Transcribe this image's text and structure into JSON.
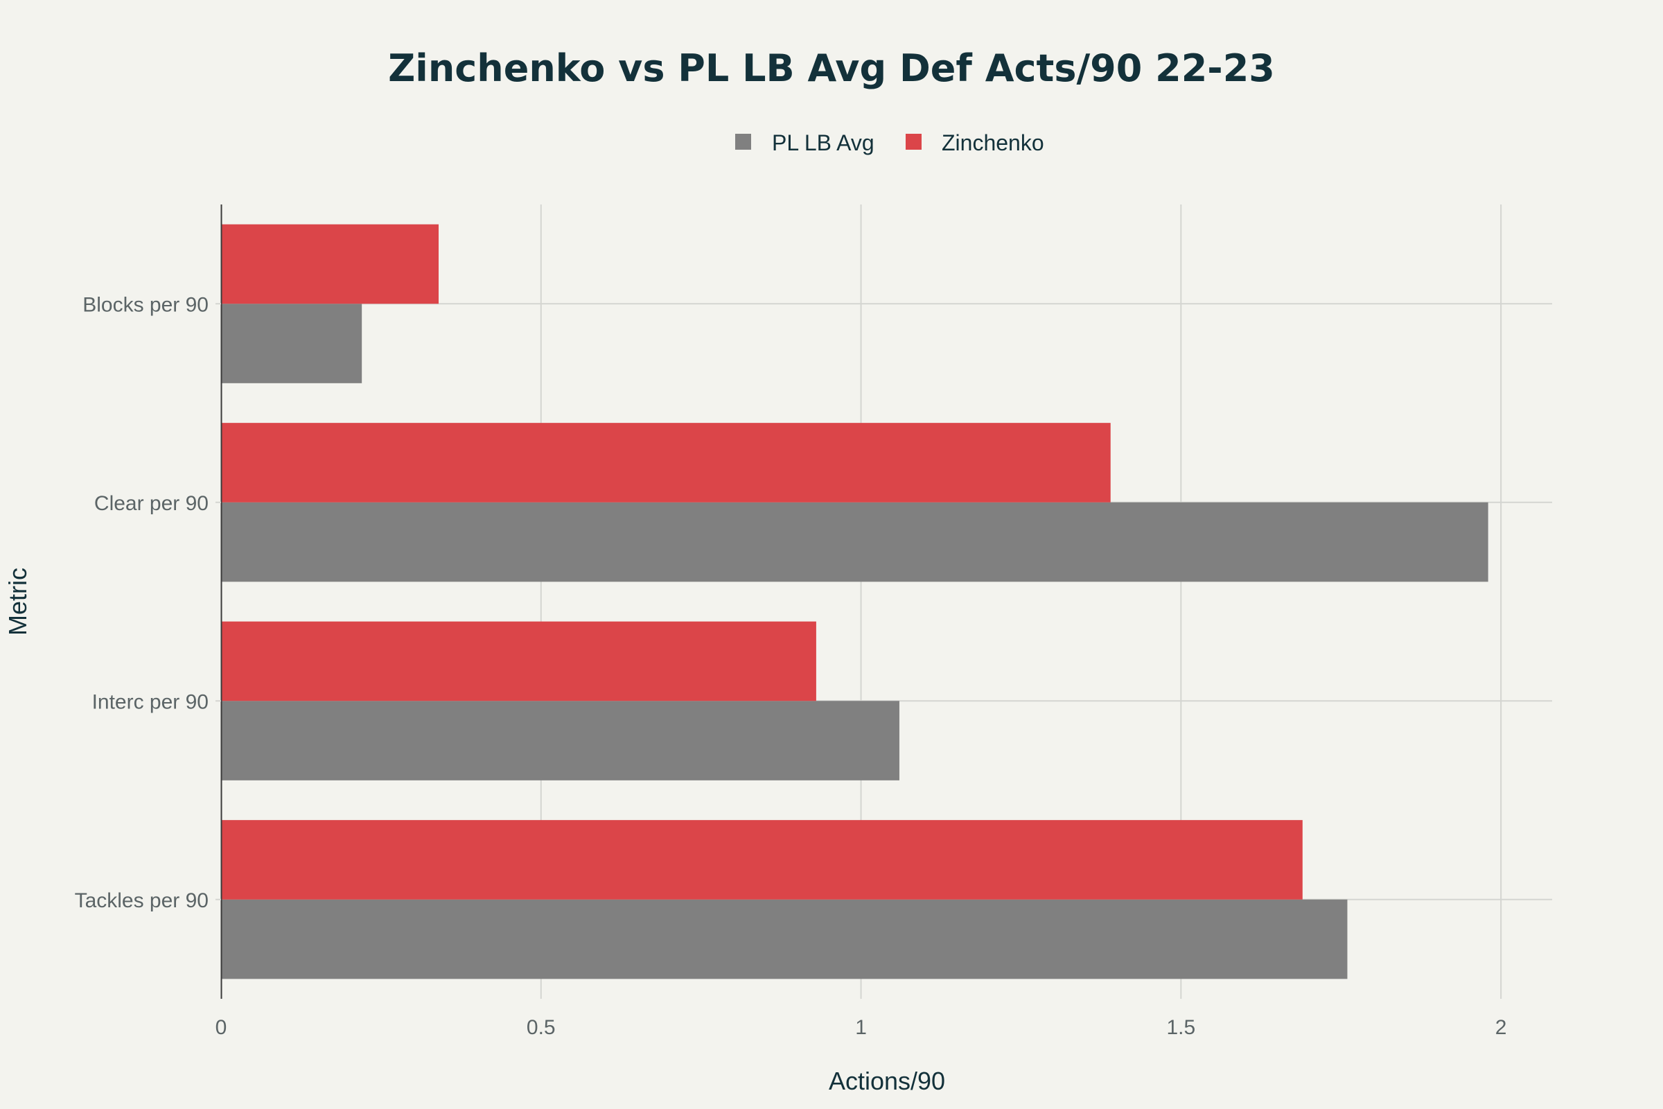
{
  "chart_data": {
    "type": "bar",
    "orientation": "horizontal",
    "title": "Zinchenko vs PL LB Avg Def Acts/90 22-23",
    "xlabel": "Actions/90",
    "ylabel": "Metric",
    "categories": [
      "Blocks per 90",
      "Clear per 90",
      "Interc per 90",
      "Tackles per 90"
    ],
    "series": [
      {
        "name": "PL LB Avg",
        "color": "#808080",
        "values": [
          0.22,
          1.98,
          1.06,
          1.76
        ]
      },
      {
        "name": "Zinchenko",
        "color": "#db4549",
        "values": [
          0.34,
          1.39,
          0.93,
          1.69
        ]
      }
    ],
    "xlim": [
      0,
      2.08
    ],
    "xticks": [
      0,
      0.5,
      1,
      1.5,
      2
    ],
    "xtick_labels": [
      "0",
      "0.5",
      "1",
      "1.5",
      "2"
    ],
    "grid": true,
    "legend_position": "top-center"
  }
}
